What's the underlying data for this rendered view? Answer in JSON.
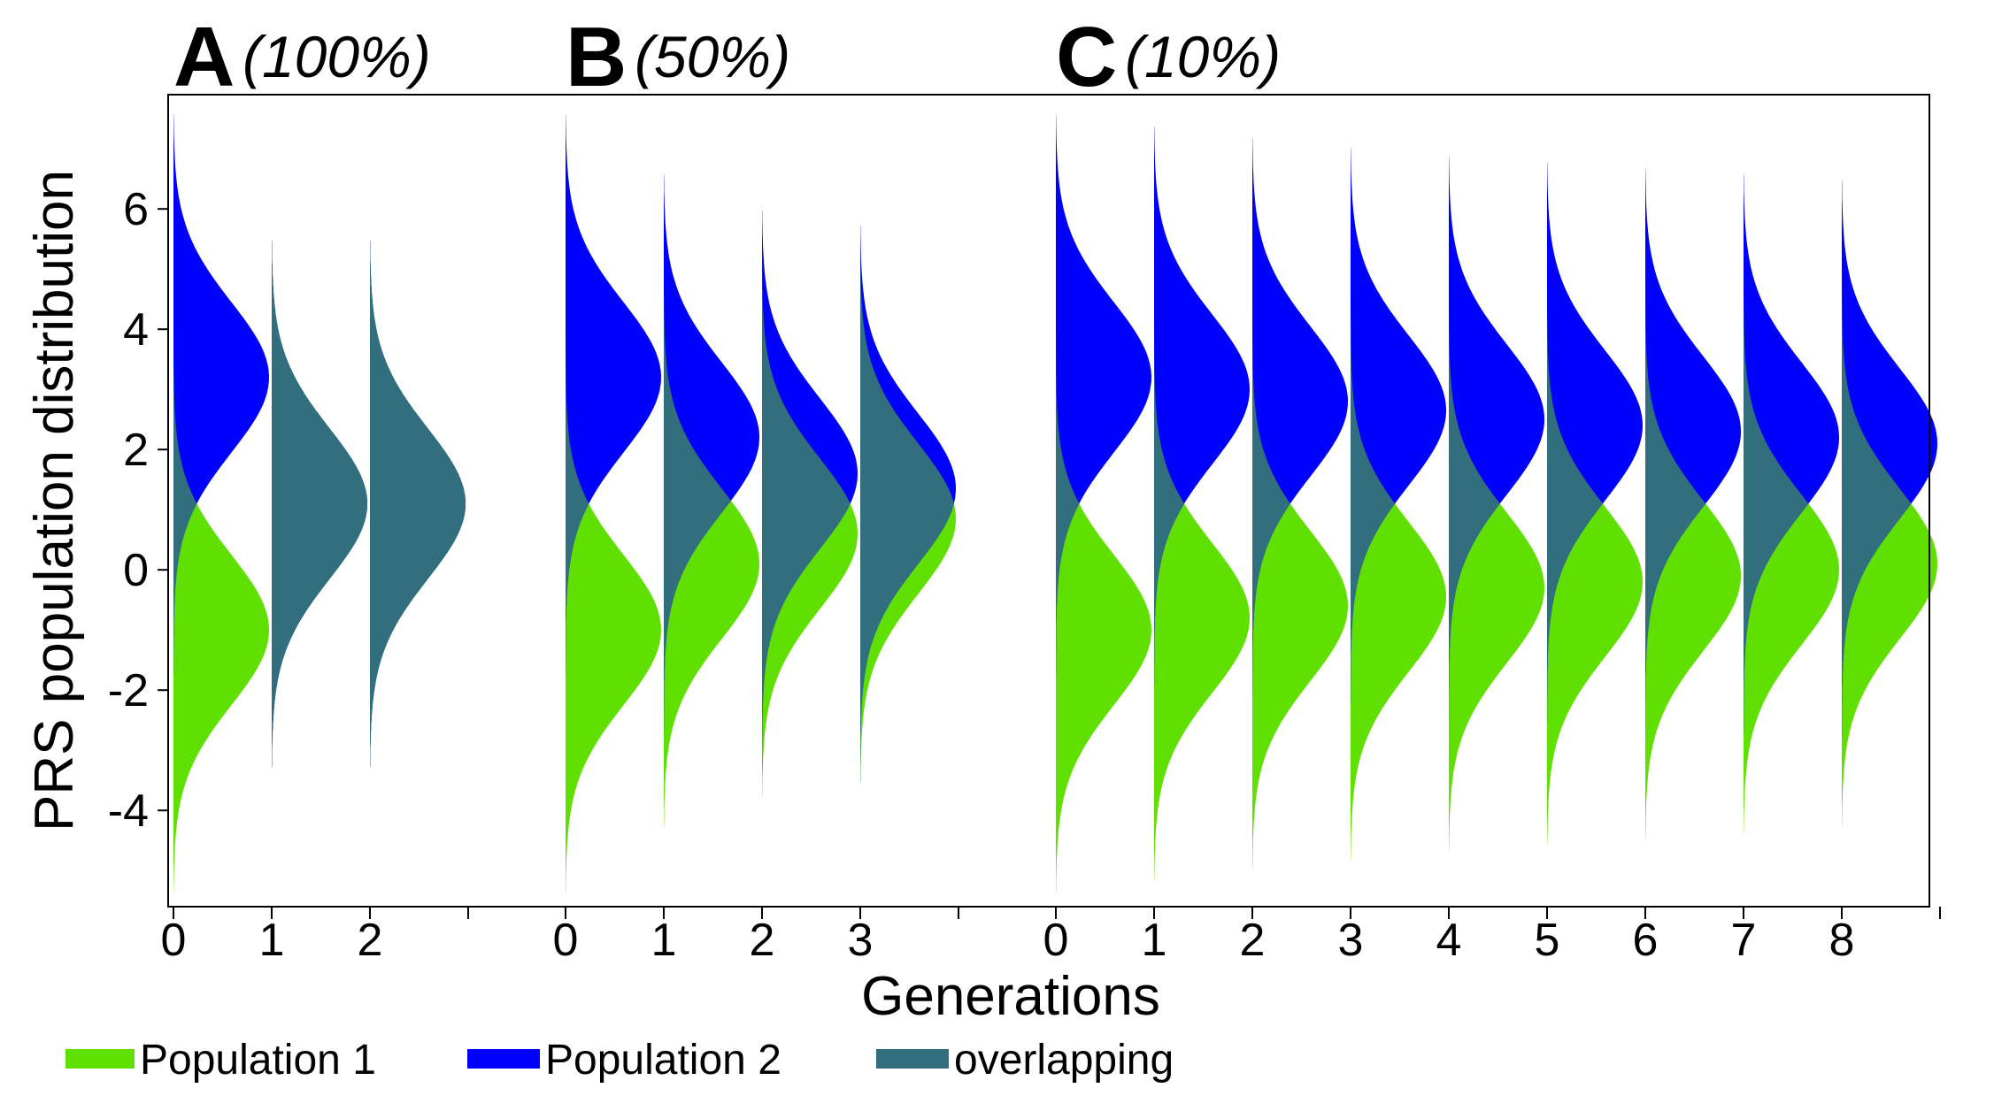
{
  "chart_data": {
    "type": "violin",
    "title": "",
    "xlabel": "Generations",
    "ylabel": "PRS population distribution",
    "ylim": [
      -5.6,
      7.9
    ],
    "yticks": [
      6,
      4,
      2,
      0,
      -2,
      -4
    ],
    "colors": {
      "population_1": "#5fe000",
      "population_2": "#0000ff",
      "overlapping": "#316f7f",
      "frame": "#000000"
    },
    "legend": [
      {
        "key": "population_1",
        "label": "Population 1"
      },
      {
        "key": "population_2",
        "label": "Population 2"
      },
      {
        "key": "overlapping",
        "label": "overlapping"
      }
    ],
    "panels": [
      {
        "letter": "A",
        "pct": "(100%)",
        "generations": [
          {
            "gen": "0",
            "mean_pop1": -1.0,
            "mean_pop2": 3.2,
            "half_width": 1.9
          },
          {
            "gen": "1",
            "mean_pop1": 1.1,
            "mean_pop2": 1.1,
            "half_width": 1.9
          },
          {
            "gen": "2",
            "mean_pop1": 1.1,
            "mean_pop2": 1.1,
            "half_width": 1.9
          }
        ]
      },
      {
        "letter": "B",
        "pct": "(50%)",
        "generations": [
          {
            "gen": "0",
            "mean_pop1": -1.0,
            "mean_pop2": 3.2,
            "half_width": 1.9
          },
          {
            "gen": "1",
            "mean_pop1": 0.1,
            "mean_pop2": 2.2,
            "half_width": 1.9
          },
          {
            "gen": "2",
            "mean_pop1": 0.6,
            "mean_pop2": 1.6,
            "half_width": 1.9
          },
          {
            "gen": "3",
            "mean_pop1": 0.85,
            "mean_pop2": 1.35,
            "half_width": 1.9
          }
        ]
      },
      {
        "letter": "C",
        "pct": "(10%)",
        "generations": [
          {
            "gen": "0",
            "mean_pop1": -1.0,
            "mean_pop2": 3.2,
            "half_width": 1.9
          },
          {
            "gen": "1",
            "mean_pop1": -0.8,
            "mean_pop2": 3.0,
            "half_width": 1.9
          },
          {
            "gen": "2",
            "mean_pop1": -0.6,
            "mean_pop2": 2.8,
            "half_width": 1.9
          },
          {
            "gen": "3",
            "mean_pop1": -0.45,
            "mean_pop2": 2.65,
            "half_width": 1.9
          },
          {
            "gen": "4",
            "mean_pop1": -0.3,
            "mean_pop2": 2.5,
            "half_width": 1.9
          },
          {
            "gen": "5",
            "mean_pop1": -0.2,
            "mean_pop2": 2.4,
            "half_width": 1.9
          },
          {
            "gen": "6",
            "mean_pop1": -0.1,
            "mean_pop2": 2.3,
            "half_width": 1.9
          },
          {
            "gen": "7",
            "mean_pop1": 0.0,
            "mean_pop2": 2.2,
            "half_width": 1.9
          },
          {
            "gen": "8",
            "mean_pop1": 0.1,
            "mean_pop2": 2.1,
            "half_width": 1.9
          }
        ]
      }
    ]
  }
}
